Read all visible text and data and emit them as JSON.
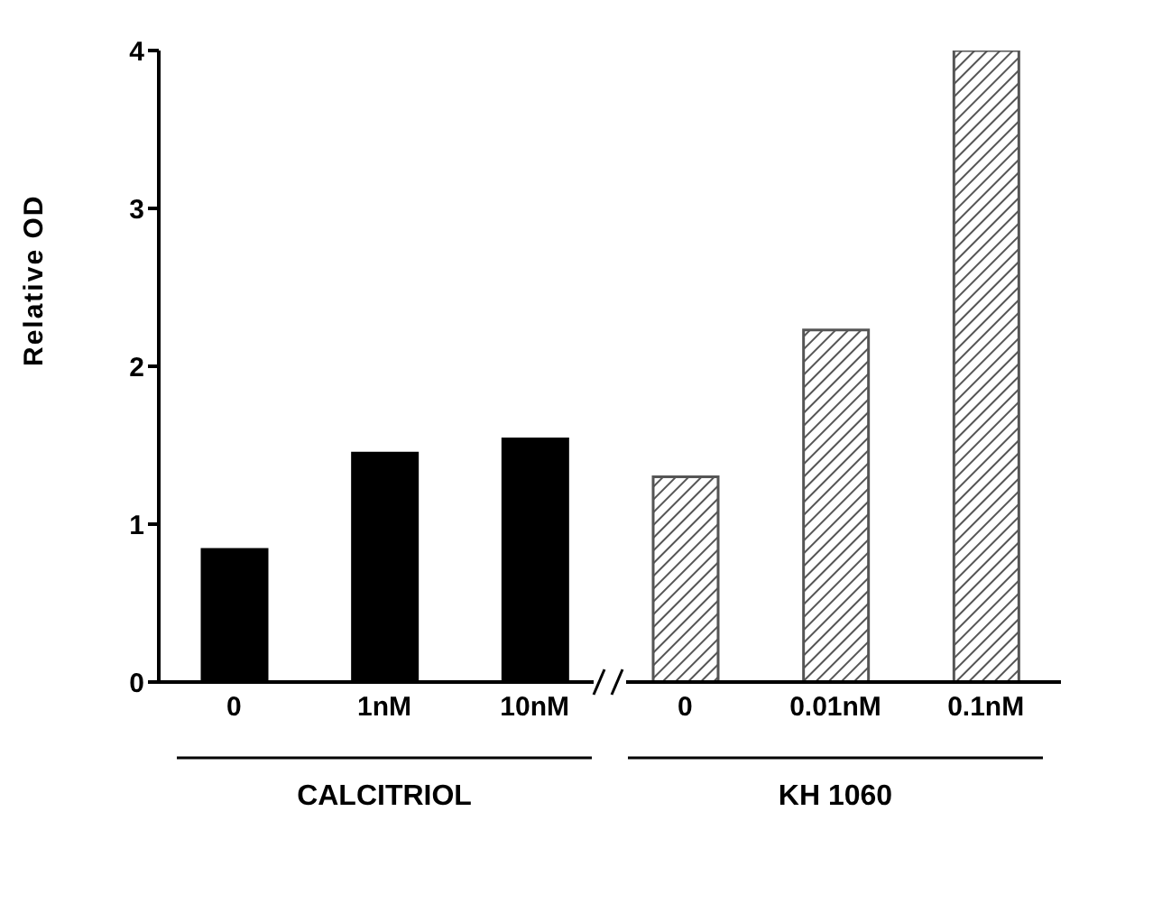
{
  "chart_data": {
    "type": "bar",
    "ylabel": "Relative OD",
    "categories": [
      "0",
      "1nM",
      "10nM",
      "0",
      "0.01nM",
      "0.1nM"
    ],
    "values": [
      0.84,
      1.45,
      1.54,
      1.3,
      2.23,
      4.0
    ],
    "colors": [
      "#000000",
      "#000000",
      "#000000",
      "#555555",
      "#555555",
      "#555555"
    ],
    "ylim": [
      0,
      4
    ],
    "yticks": [
      0,
      1,
      2,
      3,
      4
    ],
    "annotations": [
      "CALCITRIOL",
      "KH 1060"
    ]
  }
}
